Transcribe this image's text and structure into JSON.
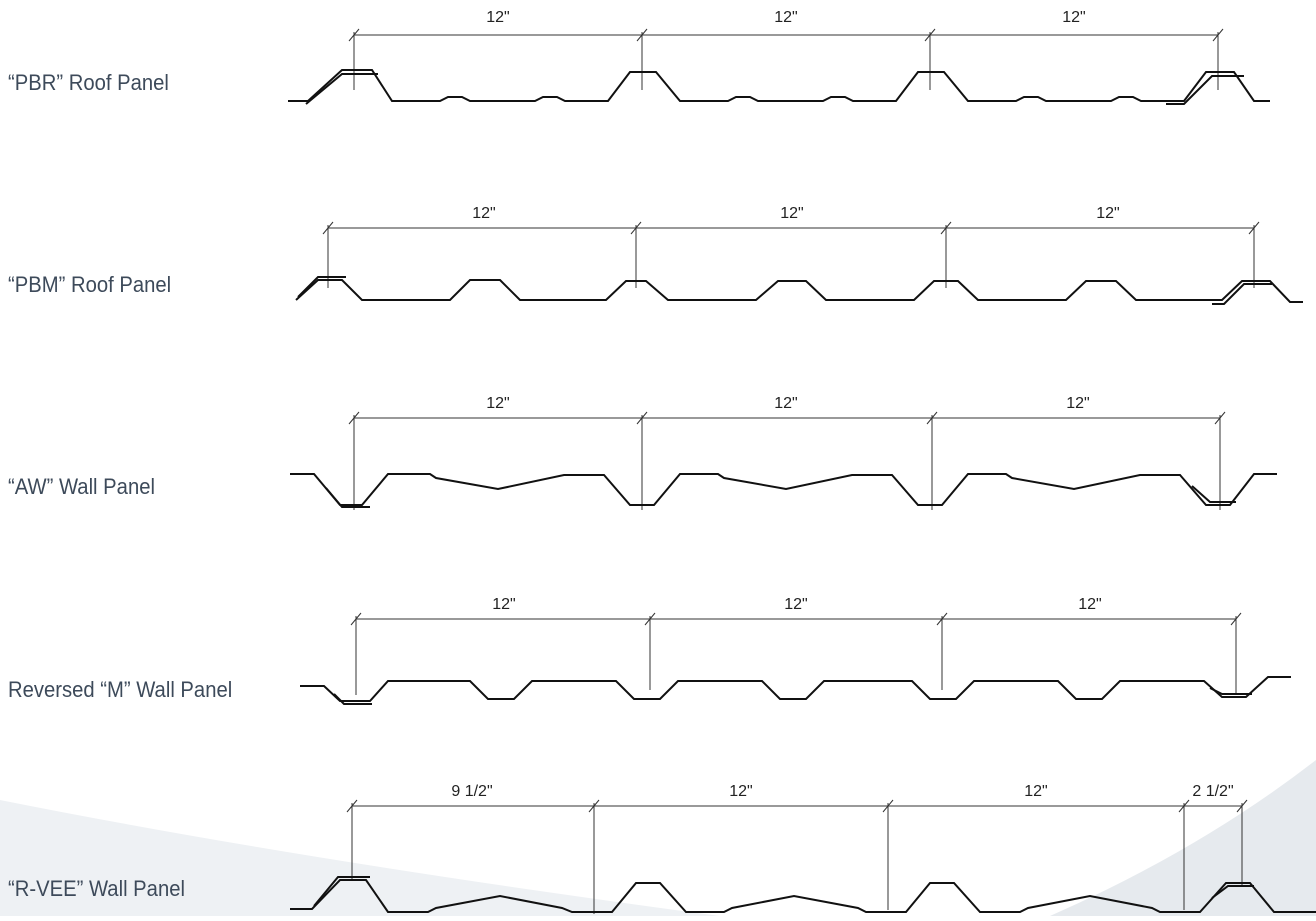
{
  "panels": [
    {
      "id": "pbr",
      "label": "“PBR” Roof Panel",
      "dimensions": [
        "12\"",
        "12\"",
        "12\""
      ]
    },
    {
      "id": "pbm",
      "label": "“PBM” Roof Panel",
      "dimensions": [
        "12\"",
        "12\"",
        "12\""
      ]
    },
    {
      "id": "aw",
      "label": "“AW” Wall Panel",
      "dimensions": [
        "12\"",
        "12\"",
        "12\""
      ]
    },
    {
      "id": "reversed-m",
      "label": "Reversed “M” Wall Panel",
      "dimensions": [
        "12\"",
        "12\"",
        "12\""
      ]
    },
    {
      "id": "r-vee",
      "label": "“R-VEE” Wall Panel",
      "dimensions": [
        "9 1/2\"",
        "12\"",
        "12\"",
        "2 1/2\""
      ]
    }
  ],
  "colors": {
    "label": "#3d4a5a",
    "line": "#111111",
    "dimension_line": "#333333",
    "background_swoosh": "#d8dde3"
  }
}
